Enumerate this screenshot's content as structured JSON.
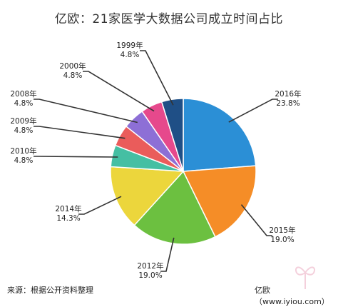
{
  "title": "亿欧：21家医学大数据公司成立时间占比",
  "footer": {
    "source": "来源：根据公开资料整理",
    "credit": "亿欧（www.iyiou.com）"
  },
  "chart_data": {
    "type": "pie",
    "title": "亿欧：21家医学大数据公司成立时间占比",
    "slices": [
      {
        "label": "2016年",
        "value": 23.8,
        "value_label": "23.8%",
        "color": "#2b8fd6"
      },
      {
        "label": "2015年",
        "value": 19.0,
        "value_label": "19.0%",
        "color": "#f58d27"
      },
      {
        "label": "2012年",
        "value": 19.0,
        "value_label": "19.0%",
        "color": "#6cc040"
      },
      {
        "label": "2014年",
        "value": 14.3,
        "value_label": "14.3%",
        "color": "#ecd63c"
      },
      {
        "label": "2010年",
        "value": 4.8,
        "value_label": "4.8%",
        "color": "#45bfa3"
      },
      {
        "label": "2009年",
        "value": 4.8,
        "value_label": "4.8%",
        "color": "#ea5c5b"
      },
      {
        "label": "2008年",
        "value": 4.8,
        "value_label": "4.8%",
        "color": "#8d6fd6"
      },
      {
        "label": "2000年",
        "value": 4.8,
        "value_label": "4.8%",
        "color": "#e6498c"
      },
      {
        "label": "1999年",
        "value": 4.8,
        "value_label": "4.8%",
        "color": "#1f4f86"
      }
    ]
  }
}
